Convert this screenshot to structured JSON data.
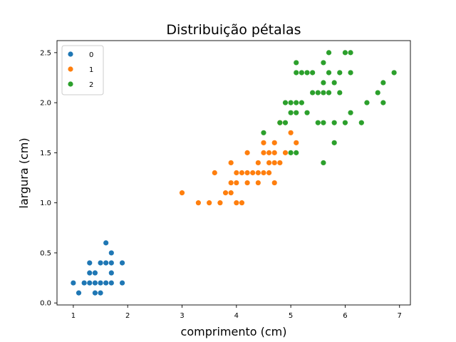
{
  "chart_data": {
    "type": "scatter",
    "title": "Distribuição pétalas",
    "xlabel": "comprimento (cm)",
    "ylabel": "largura (cm)",
    "xlim": [
      0.7,
      7.2
    ],
    "ylim": [
      -0.02,
      2.62
    ],
    "xticks": [
      1,
      2,
      3,
      4,
      5,
      6,
      7
    ],
    "yticks": [
      0.0,
      0.5,
      1.0,
      1.5,
      2.0,
      2.5
    ],
    "xtick_labels": [
      "1",
      "2",
      "3",
      "4",
      "5",
      "6",
      "7"
    ],
    "ytick_labels": [
      "0.0",
      "0.5",
      "1.0",
      "1.5",
      "2.0",
      "2.5"
    ],
    "grid": false,
    "legend_position": "top-left",
    "series": [
      {
        "name": "0",
        "color": "#1f77b4",
        "points": [
          [
            1.0,
            0.2
          ],
          [
            1.1,
            0.1
          ],
          [
            1.2,
            0.2
          ],
          [
            1.3,
            0.2
          ],
          [
            1.3,
            0.3
          ],
          [
            1.3,
            0.4
          ],
          [
            1.4,
            0.1
          ],
          [
            1.4,
            0.2
          ],
          [
            1.4,
            0.3
          ],
          [
            1.5,
            0.1
          ],
          [
            1.5,
            0.2
          ],
          [
            1.5,
            0.4
          ],
          [
            1.6,
            0.2
          ],
          [
            1.6,
            0.4
          ],
          [
            1.6,
            0.6
          ],
          [
            1.7,
            0.2
          ],
          [
            1.7,
            0.3
          ],
          [
            1.7,
            0.4
          ],
          [
            1.7,
            0.5
          ],
          [
            1.9,
            0.2
          ],
          [
            1.9,
            0.4
          ]
        ]
      },
      {
        "name": "1",
        "color": "#ff7f0e",
        "points": [
          [
            3.0,
            1.1
          ],
          [
            3.3,
            1.0
          ],
          [
            3.5,
            1.0
          ],
          [
            3.6,
            1.3
          ],
          [
            3.7,
            1.0
          ],
          [
            3.8,
            1.1
          ],
          [
            3.9,
            1.1
          ],
          [
            3.9,
            1.2
          ],
          [
            3.9,
            1.4
          ],
          [
            4.0,
            1.0
          ],
          [
            4.0,
            1.2
          ],
          [
            4.0,
            1.3
          ],
          [
            4.1,
            1.0
          ],
          [
            4.1,
            1.3
          ],
          [
            4.2,
            1.2
          ],
          [
            4.2,
            1.3
          ],
          [
            4.2,
            1.5
          ],
          [
            4.3,
            1.3
          ],
          [
            4.4,
            1.2
          ],
          [
            4.4,
            1.3
          ],
          [
            4.4,
            1.4
          ],
          [
            4.5,
            1.3
          ],
          [
            4.5,
            1.5
          ],
          [
            4.5,
            1.6
          ],
          [
            4.6,
            1.3
          ],
          [
            4.6,
            1.4
          ],
          [
            4.6,
            1.5
          ],
          [
            4.7,
            1.2
          ],
          [
            4.7,
            1.4
          ],
          [
            4.7,
            1.5
          ],
          [
            4.7,
            1.6
          ],
          [
            4.8,
            1.4
          ],
          [
            4.8,
            1.8
          ],
          [
            4.9,
            1.5
          ],
          [
            5.0,
            1.7
          ],
          [
            5.1,
            1.6
          ]
        ]
      },
      {
        "name": "2",
        "color": "#2ca02c",
        "points": [
          [
            4.5,
            1.7
          ],
          [
            4.8,
            1.8
          ],
          [
            4.9,
            1.8
          ],
          [
            4.9,
            2.0
          ],
          [
            5.0,
            1.5
          ],
          [
            5.0,
            1.9
          ],
          [
            5.0,
            2.0
          ],
          [
            5.1,
            1.5
          ],
          [
            5.1,
            1.9
          ],
          [
            5.1,
            2.0
          ],
          [
            5.1,
            2.3
          ],
          [
            5.1,
            2.4
          ],
          [
            5.2,
            2.0
          ],
          [
            5.2,
            2.3
          ],
          [
            5.3,
            1.9
          ],
          [
            5.3,
            2.3
          ],
          [
            5.4,
            2.1
          ],
          [
            5.4,
            2.3
          ],
          [
            5.5,
            1.8
          ],
          [
            5.5,
            2.1
          ],
          [
            5.6,
            1.4
          ],
          [
            5.6,
            1.8
          ],
          [
            5.6,
            2.1
          ],
          [
            5.6,
            2.2
          ],
          [
            5.6,
            2.4
          ],
          [
            5.7,
            2.1
          ],
          [
            5.7,
            2.3
          ],
          [
            5.7,
            2.5
          ],
          [
            5.8,
            1.6
          ],
          [
            5.8,
            1.8
          ],
          [
            5.8,
            2.2
          ],
          [
            5.9,
            2.1
          ],
          [
            5.9,
            2.3
          ],
          [
            6.0,
            1.8
          ],
          [
            6.0,
            2.5
          ],
          [
            6.1,
            1.9
          ],
          [
            6.1,
            2.3
          ],
          [
            6.1,
            2.5
          ],
          [
            6.3,
            1.8
          ],
          [
            6.4,
            2.0
          ],
          [
            6.6,
            2.1
          ],
          [
            6.7,
            2.0
          ],
          [
            6.7,
            2.2
          ],
          [
            6.9,
            2.3
          ]
        ]
      }
    ]
  }
}
